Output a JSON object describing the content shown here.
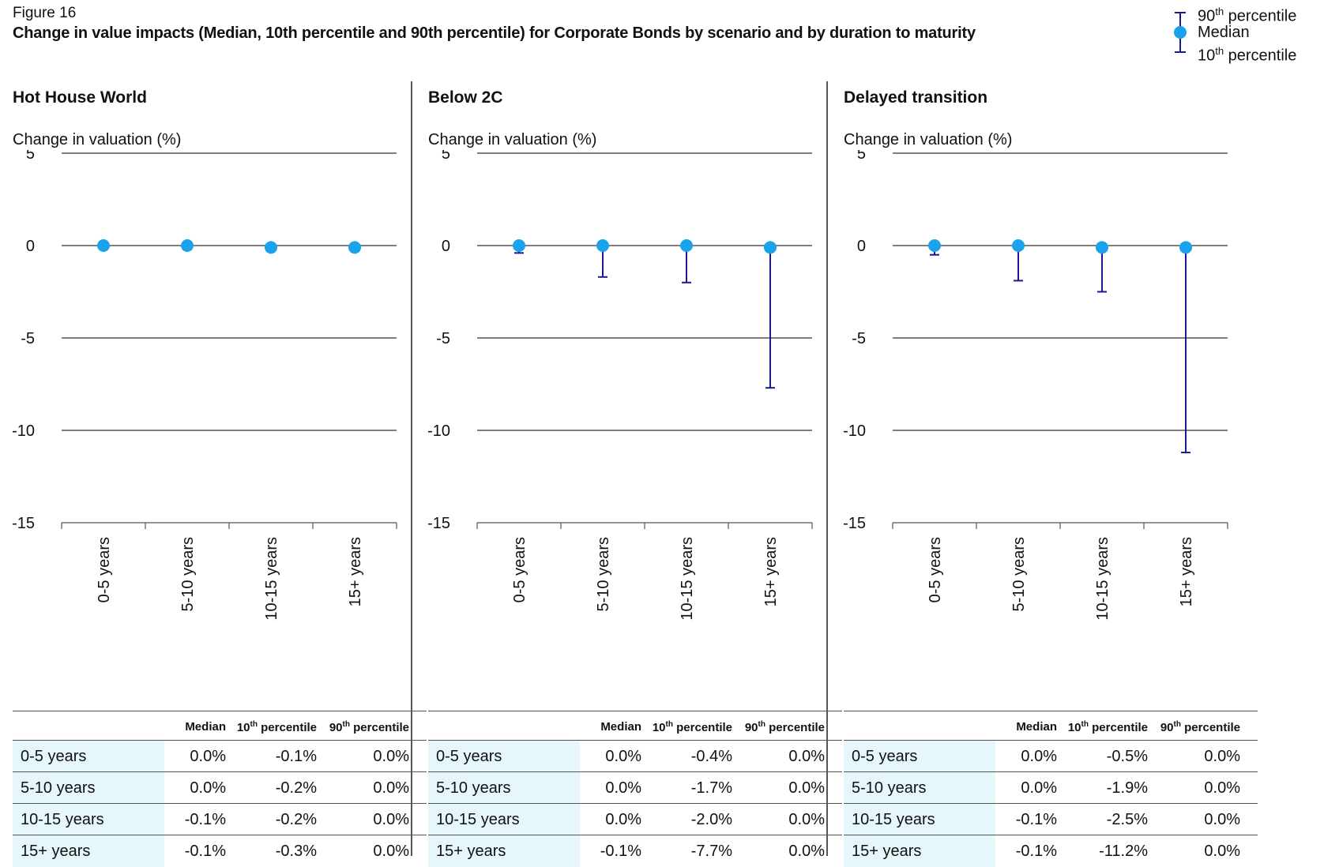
{
  "figure_label": "Figure 16",
  "figure_title": "Change in value impacts (Median, 10th percentile and 90th percentile) for Corporate Bonds by scenario and by duration to maturity",
  "legend": {
    "p90_main": "90",
    "p90_sup": "th",
    "p90_rest": " percentile",
    "median": "Median",
    "p10_main": "10",
    "p10_sup": "th",
    "p10_rest": " percentile"
  },
  "colors": {
    "median_marker": "#1aa3ec",
    "range_line": "#1a1a8c",
    "grid": "#333333",
    "table_highlight": "#e6f7fb"
  },
  "table_headers": {
    "median": "Median",
    "p10_main": "10",
    "p10_sup": "th",
    "p10_rest": " percentile",
    "p90_main": "90",
    "p90_sup": "th",
    "p90_rest": " percentile"
  },
  "panels": [
    {
      "title": "Hot House World",
      "ylabel": "Change in valuation (%)",
      "rows": [
        {
          "cat": "0-5 years",
          "median": "0.0%",
          "p10": "-0.1%",
          "p90": "0.0%"
        },
        {
          "cat": "5-10 years",
          "median": "0.0%",
          "p10": "-0.2%",
          "p90": "0.0%"
        },
        {
          "cat": "10-15 years",
          "median": "-0.1%",
          "p10": "-0.2%",
          "p90": "0.0%"
        },
        {
          "cat": "15+ years",
          "median": "-0.1%",
          "p10": "-0.3%",
          "p90": "0.0%"
        }
      ]
    },
    {
      "title": "Below 2C",
      "ylabel": "Change in valuation (%)",
      "rows": [
        {
          "cat": "0-5 years",
          "median": "0.0%",
          "p10": "-0.4%",
          "p90": "0.0%"
        },
        {
          "cat": "5-10 years",
          "median": "0.0%",
          "p10": "-1.7%",
          "p90": "0.0%"
        },
        {
          "cat": "10-15 years",
          "median": "0.0%",
          "p10": "-2.0%",
          "p90": "0.0%"
        },
        {
          "cat": "15+ years",
          "median": "-0.1%",
          "p10": "-7.7%",
          "p90": "0.0%"
        }
      ]
    },
    {
      "title": "Delayed transition",
      "ylabel": "Change in valuation (%)",
      "rows": [
        {
          "cat": "0-5 years",
          "median": "0.0%",
          "p10": "-0.5%",
          "p90": "0.0%"
        },
        {
          "cat": "5-10 years",
          "median": "0.0%",
          "p10": "-1.9%",
          "p90": "0.0%"
        },
        {
          "cat": "10-15 years",
          "median": "-0.1%",
          "p10": "-2.5%",
          "p90": "0.0%"
        },
        {
          "cat": "15+ years",
          "median": "-0.1%",
          "p10": "-11.2%",
          "p90": "0.0%"
        }
      ]
    }
  ],
  "chart_data": [
    {
      "type": "scatter",
      "title": "Hot House World",
      "ylabel": "Change in valuation (%)",
      "categories": [
        "0-5 years",
        "5-10 years",
        "10-15 years",
        "15+ years"
      ],
      "yticks": [
        5,
        0,
        -5,
        -10,
        -15
      ],
      "ylim": [
        -15,
        5
      ],
      "series": [
        {
          "name": "Median",
          "values": [
            0.0,
            0.0,
            -0.1,
            -0.1
          ]
        },
        {
          "name": "10th percentile",
          "values": [
            -0.1,
            -0.2,
            -0.2,
            -0.3
          ]
        },
        {
          "name": "90th percentile",
          "values": [
            0.0,
            0.0,
            0.0,
            0.0
          ]
        }
      ]
    },
    {
      "type": "scatter",
      "title": "Below 2C",
      "ylabel": "Change in valuation (%)",
      "categories": [
        "0-5 years",
        "5-10 years",
        "10-15 years",
        "15+ years"
      ],
      "yticks": [
        5,
        0,
        -5,
        -10,
        -15
      ],
      "ylim": [
        -15,
        5
      ],
      "series": [
        {
          "name": "Median",
          "values": [
            0.0,
            0.0,
            0.0,
            -0.1
          ]
        },
        {
          "name": "10th percentile",
          "values": [
            -0.4,
            -1.7,
            -2.0,
            -7.7
          ]
        },
        {
          "name": "90th percentile",
          "values": [
            0.0,
            0.0,
            0.0,
            0.0
          ]
        }
      ]
    },
    {
      "type": "scatter",
      "title": "Delayed transition",
      "ylabel": "Change in valuation (%)",
      "categories": [
        "0-5 years",
        "5-10 years",
        "10-15 years",
        "15+ years"
      ],
      "yticks": [
        5,
        0,
        -5,
        -10,
        -15
      ],
      "ylim": [
        -15,
        5
      ],
      "series": [
        {
          "name": "Median",
          "values": [
            0.0,
            0.0,
            -0.1,
            -0.1
          ]
        },
        {
          "name": "10th percentile",
          "values": [
            -0.5,
            -1.9,
            -2.5,
            -11.2
          ]
        },
        {
          "name": "90th percentile",
          "values": [
            0.0,
            0.0,
            0.0,
            0.0
          ]
        }
      ]
    }
  ]
}
